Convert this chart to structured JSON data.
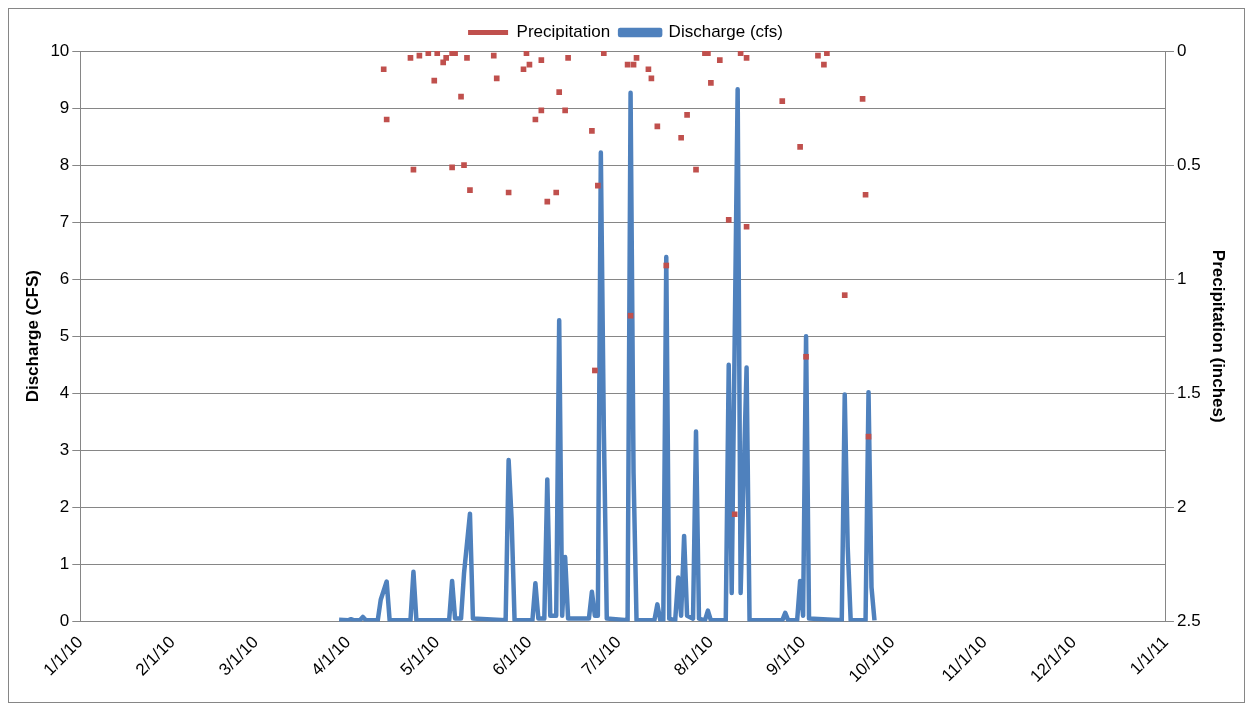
{
  "chart_data": {
    "type": "line",
    "ylabel": "Discharge (CFS)",
    "y2label": "Precipitation (inches)",
    "legend": "top",
    "grid": "y",
    "xlim": [
      "2010-01-01",
      "2011-01-01"
    ],
    "xticks": [
      {
        "value": "2010-01-01",
        "label": "1/1/10"
      },
      {
        "value": "2010-02-01",
        "label": "2/1/10"
      },
      {
        "value": "2010-03-01",
        "label": "3/1/10"
      },
      {
        "value": "2010-04-01",
        "label": "4/1/10"
      },
      {
        "value": "2010-05-01",
        "label": "5/1/10"
      },
      {
        "value": "2010-06-01",
        "label": "6/1/10"
      },
      {
        "value": "2010-07-01",
        "label": "7/1/10"
      },
      {
        "value": "2010-08-01",
        "label": "8/1/10"
      },
      {
        "value": "2010-09-01",
        "label": "9/1/10"
      },
      {
        "value": "2010-10-01",
        "label": "10/1/10"
      },
      {
        "value": "2010-11-01",
        "label": "11/1/10"
      },
      {
        "value": "2010-12-01",
        "label": "12/1/10"
      },
      {
        "value": "2011-01-01",
        "label": "1/1/11"
      }
    ],
    "ylim": [
      0,
      10
    ],
    "yticks": [
      0,
      1,
      2,
      3,
      4,
      5,
      6,
      7,
      8,
      9,
      10
    ],
    "y2lim": [
      2.5,
      0
    ],
    "y2ticks": [
      0,
      0.5,
      1,
      1.5,
      2,
      2.5
    ],
    "series": [
      {
        "name": "Discharge (cfs)",
        "color": "#4f81bd",
        "marker": "none",
        "line_style": "solid",
        "x": [
          "2010-03-29",
          "2010-04-01",
          "2010-04-02",
          "2010-04-03",
          "2010-04-05",
          "2010-04-06",
          "2010-04-07",
          "2010-04-11",
          "2010-04-12",
          "2010-04-14",
          "2010-04-15",
          "2010-04-22",
          "2010-04-23",
          "2010-04-24",
          "2010-05-05",
          "2010-05-06",
          "2010-05-07",
          "2010-05-09",
          "2010-05-10",
          "2010-05-12",
          "2010-05-13",
          "2010-05-24",
          "2010-05-25",
          "2010-05-26",
          "2010-05-27",
          "2010-06-02",
          "2010-06-03",
          "2010-06-04",
          "2010-06-06",
          "2010-06-07",
          "2010-06-08",
          "2010-06-10",
          "2010-06-11",
          "2010-06-12",
          "2010-06-13",
          "2010-06-14",
          "2010-06-21",
          "2010-06-22",
          "2010-06-23",
          "2010-06-24",
          "2010-06-25",
          "2010-06-26",
          "2010-06-27",
          "2010-07-04",
          "2010-07-05",
          "2010-07-06",
          "2010-07-07",
          "2010-07-13",
          "2010-07-14",
          "2010-07-15",
          "2010-07-16",
          "2010-07-17",
          "2010-07-18",
          "2010-07-20",
          "2010-07-21",
          "2010-07-22",
          "2010-07-23",
          "2010-07-24",
          "2010-07-26",
          "2010-07-27",
          "2010-07-28",
          "2010-07-30",
          "2010-07-31",
          "2010-08-01",
          "2010-08-06",
          "2010-08-07",
          "2010-08-08",
          "2010-08-10",
          "2010-08-11",
          "2010-08-13",
          "2010-08-14",
          "2010-08-25",
          "2010-08-26",
          "2010-08-27",
          "2010-08-30",
          "2010-08-31",
          "2010-09-01",
          "2010-09-02",
          "2010-09-03",
          "2010-09-14",
          "2010-09-15",
          "2010-09-16",
          "2010-09-17",
          "2010-09-22",
          "2010-09-23",
          "2010-09-24",
          "2010-09-25"
        ],
        "values": [
          0.03,
          0.02,
          0.04,
          0.02,
          0.02,
          0.08,
          0.02,
          0.02,
          0.38,
          0.7,
          0.02,
          0.02,
          0.87,
          0.02,
          0.02,
          0.71,
          0.05,
          0.05,
          0.84,
          1.89,
          0.05,
          0.02,
          2.83,
          1.8,
          0.02,
          0.02,
          0.67,
          0.05,
          0.05,
          2.49,
          0.1,
          0.1,
          5.28,
          0.1,
          1.13,
          0.05,
          0.05,
          0.52,
          0.1,
          0.1,
          8.22,
          3.4,
          0.05,
          0.02,
          9.27,
          2.6,
          0.02,
          0.02,
          0.3,
          0.02,
          0.02,
          6.39,
          0.05,
          0.02,
          0.77,
          0.1,
          1.5,
          0.1,
          0.05,
          3.33,
          0.05,
          0.02,
          0.19,
          0.02,
          0.02,
          4.5,
          0.5,
          9.33,
          0.5,
          4.45,
          0.02,
          0.02,
          0.15,
          0.02,
          0.02,
          0.71,
          0.1,
          5.0,
          0.05,
          0.02,
          3.98,
          1.3,
          0.02,
          0.02,
          4.02,
          0.6,
          0.02
        ]
      },
      {
        "name": "Precipitation",
        "type": "scatter",
        "axis": "y2",
        "color": "#c0504d",
        "marker": "square",
        "x": [
          "2010-04-13",
          "2010-04-14",
          "2010-04-22",
          "2010-04-23",
          "2010-04-25",
          "2010-04-28",
          "2010-04-30",
          "2010-05-01",
          "2010-05-03",
          "2010-05-04",
          "2010-05-06",
          "2010-05-06",
          "2010-05-07",
          "2010-05-09",
          "2010-05-10",
          "2010-05-11",
          "2010-05-12",
          "2010-05-20",
          "2010-05-21",
          "2010-05-25",
          "2010-05-30",
          "2010-05-31",
          "2010-06-01",
          "2010-06-03",
          "2010-06-05",
          "2010-06-05",
          "2010-06-07",
          "2010-06-10",
          "2010-06-11",
          "2010-06-13",
          "2010-06-14",
          "2010-06-22",
          "2010-06-23",
          "2010-06-24",
          "2010-06-26",
          "2010-07-04",
          "2010-07-05",
          "2010-07-06",
          "2010-07-07",
          "2010-07-11",
          "2010-07-12",
          "2010-07-14",
          "2010-07-17",
          "2010-07-22",
          "2010-07-24",
          "2010-07-27",
          "2010-07-30",
          "2010-07-31",
          "2010-08-01",
          "2010-08-04",
          "2010-08-07",
          "2010-08-09",
          "2010-08-11",
          "2010-08-13",
          "2010-08-13",
          "2010-08-25",
          "2010-08-31",
          "2010-09-02",
          "2010-09-06",
          "2010-09-08",
          "2010-09-09",
          "2010-09-15",
          "2010-09-21",
          "2010-09-22",
          "2010-09-23"
        ],
        "values": [
          0.08,
          0.3,
          0.03,
          0.52,
          0.02,
          0.01,
          0.13,
          0.01,
          0.05,
          0.03,
          0.01,
          0.51,
          0.01,
          0.2,
          0.5,
          0.03,
          0.61,
          0.02,
          0.12,
          0.62,
          0.08,
          0.01,
          0.06,
          0.3,
          0.26,
          0.04,
          0.66,
          0.62,
          0.18,
          0.26,
          0.03,
          0.35,
          1.4,
          0.59,
          0.01,
          0.06,
          1.16,
          0.06,
          0.03,
          0.08,
          0.12,
          0.33,
          0.94,
          0.38,
          0.28,
          0.52,
          0.01,
          0.01,
          0.14,
          0.04,
          0.74,
          2.03,
          0.01,
          0.77,
          0.03,
          0.22,
          0.42,
          1.34,
          0.02,
          0.06,
          0.01,
          1.07,
          0.21,
          0.63,
          1.69
        ]
      }
    ]
  }
}
